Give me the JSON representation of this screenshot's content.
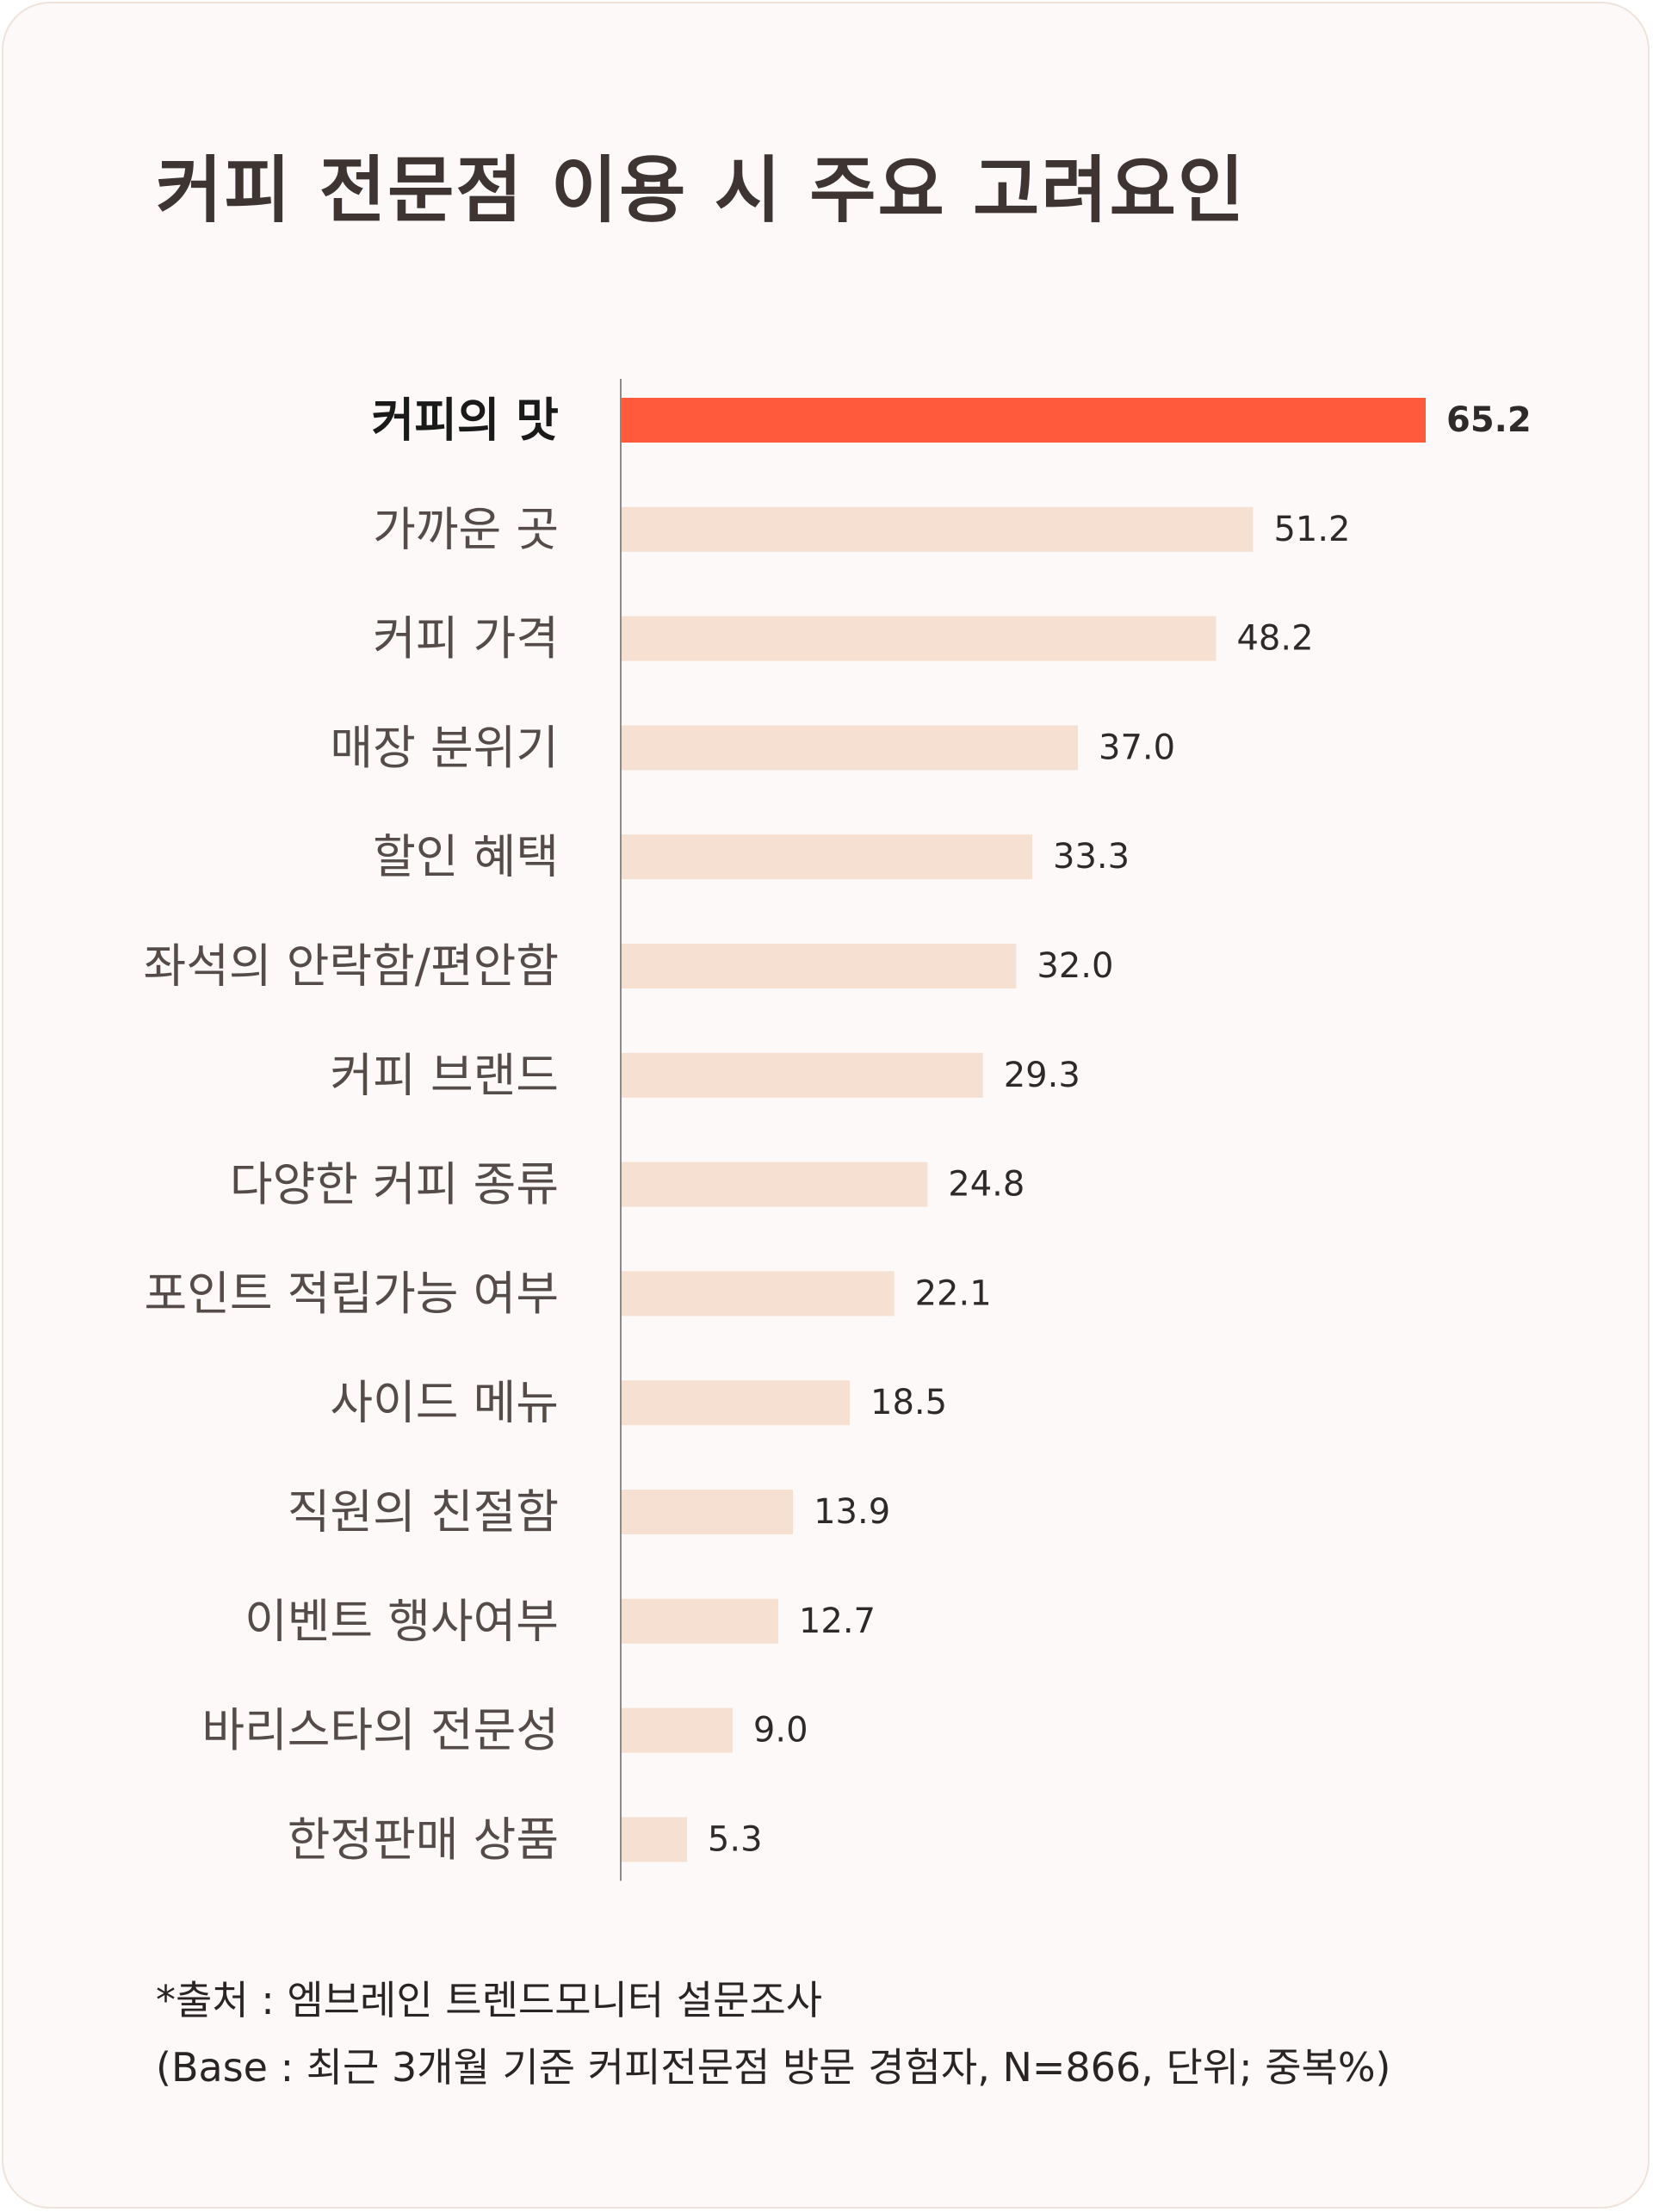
{
  "title": "커피 전문점 이용 시 주요 고려요인",
  "colors": {
    "highlight": "#ff5a3c",
    "bar": "#f6e0d2",
    "axis": "#8a8a8a"
  },
  "chart_data": {
    "type": "bar",
    "orientation": "horizontal",
    "title": "커피 전문점 이용 시 주요 고려요인",
    "categories": [
      "커피의 맛",
      "가까운 곳",
      "커피 가격",
      "매장 분위기",
      "할인 혜택",
      "좌석의 안락함/편안함",
      "커피 브랜드",
      "다양한 커피 종류",
      "포인트 적립가능 여부",
      "사이드 메뉴",
      "직원의 친절함",
      "이벤트 행사여부",
      "바리스타의 전문성",
      "한정판매 상품"
    ],
    "values": [
      65.2,
      51.2,
      48.2,
      37.0,
      33.3,
      32.0,
      29.3,
      24.8,
      22.1,
      18.5,
      13.9,
      12.7,
      9.0,
      5.3
    ],
    "value_labels": [
      "65.2",
      "51.2",
      "48.2",
      "37.0",
      "33.3",
      "32.0",
      "29.3",
      "24.8",
      "22.1",
      "18.5",
      "13.9",
      "12.7",
      "9.0",
      "5.3"
    ],
    "highlight_index": 0,
    "xlim": [
      0,
      65.2
    ],
    "grid": false,
    "xlabel": "",
    "ylabel": ""
  },
  "footer": {
    "source": "*출처 : 엠브레인 트렌드모니터 설문조사",
    "base": "(Base : 최근 3개월 기준 커피전문점 방문 경험자, N=866, 단위; 중복%)"
  }
}
